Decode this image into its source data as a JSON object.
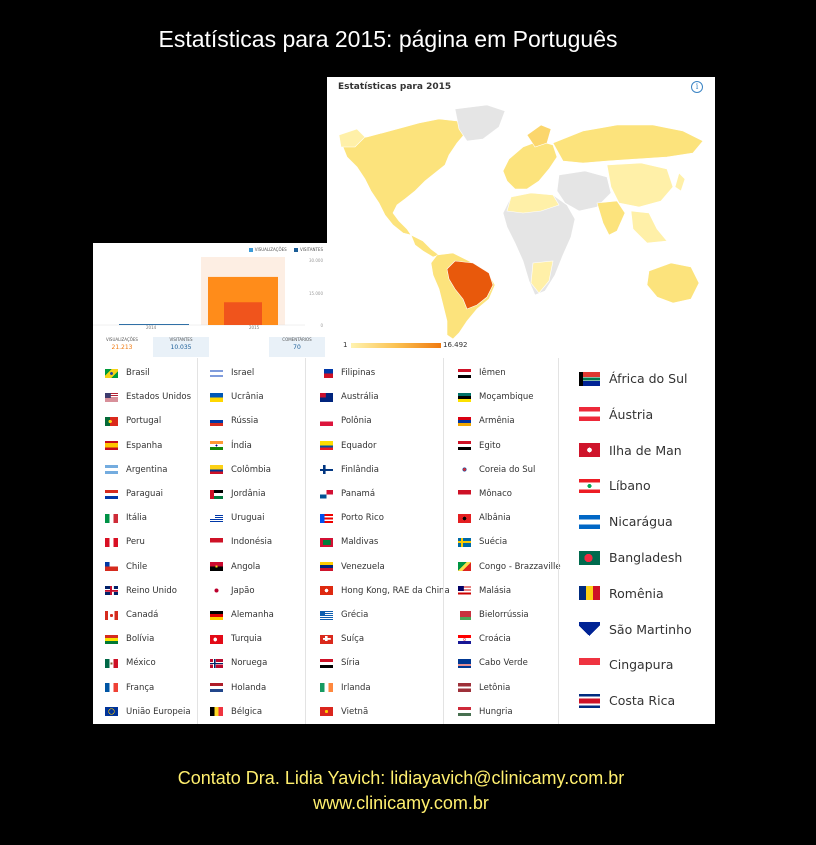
{
  "title": "Estatísticas para 2015: página em Português",
  "map": {
    "title": "Estatísticas para 2015",
    "legend_min": "1",
    "legend_max": "16.492",
    "colors": {
      "low": "#fff0a8",
      "mid": "#fbd66c",
      "high": "#f07a10",
      "top": "#e8590c",
      "none": "#e5e5e5"
    }
  },
  "chart": {
    "legend_visualizacoes": "VISUALIZAÇÕES",
    "legend_visitantes": "VISITANTES",
    "tick_top": "30.000",
    "tick_mid": "15.000",
    "tick_zero": "0",
    "x_2014": "2014",
    "x_2015": "2015",
    "chart_data": {
      "type": "bar",
      "categories": [
        "2014",
        "2015"
      ],
      "series": [
        {
          "name": "VISUALIZAÇÕES",
          "values": [
            300,
            21213
          ]
        },
        {
          "name": "VISITANTES",
          "values": [
            150,
            10035
          ]
        }
      ],
      "ylim": [
        0,
        30000
      ]
    },
    "stats": {
      "views_label": "VISUALIZAÇÕES",
      "views_value": "21.213",
      "visitors_label": "VISITANTES",
      "visitors_value": "10.035",
      "comments_label": "COMENTÁRIOS",
      "comments_value": "70"
    }
  },
  "countries": {
    "col1": [
      {
        "name": "Brasil",
        "flag": "brazil"
      },
      {
        "name": "Estados Unidos",
        "flag": "usa"
      },
      {
        "name": "Portugal",
        "flag": "portugal"
      },
      {
        "name": "Espanha",
        "flag": "spain"
      },
      {
        "name": "Argentina",
        "flag": "argentina"
      },
      {
        "name": "Paraguai",
        "flag": "paraguay"
      },
      {
        "name": "Itália",
        "flag": "italy"
      },
      {
        "name": "Peru",
        "flag": "peru"
      },
      {
        "name": "Chile",
        "flag": "chile"
      },
      {
        "name": "Reino Unido",
        "flag": "uk"
      },
      {
        "name": "Canadá",
        "flag": "canada"
      },
      {
        "name": "Bolívia",
        "flag": "bolivia"
      },
      {
        "name": "México",
        "flag": "mexico"
      },
      {
        "name": "França",
        "flag": "france"
      },
      {
        "name": "União Europeia",
        "flag": "eu"
      }
    ],
    "col2": [
      {
        "name": "Israel",
        "flag": "israel"
      },
      {
        "name": "Ucrânia",
        "flag": "ukraine"
      },
      {
        "name": "Rússia",
        "flag": "russia"
      },
      {
        "name": "Índia",
        "flag": "india"
      },
      {
        "name": "Colômbia",
        "flag": "colombia"
      },
      {
        "name": "Jordânia",
        "flag": "jordan"
      },
      {
        "name": "Uruguai",
        "flag": "uruguay"
      },
      {
        "name": "Indonésia",
        "flag": "indonesia"
      },
      {
        "name": "Angola",
        "flag": "angola"
      },
      {
        "name": "Japão",
        "flag": "japan"
      },
      {
        "name": "Alemanha",
        "flag": "germany"
      },
      {
        "name": "Turquia",
        "flag": "turkey"
      },
      {
        "name": "Noruega",
        "flag": "norway"
      },
      {
        "name": "Holanda",
        "flag": "netherlands"
      },
      {
        "name": "Bélgica",
        "flag": "belgium"
      }
    ],
    "col3": [
      {
        "name": "Filipinas",
        "flag": "philippines"
      },
      {
        "name": "Austrália",
        "flag": "australia"
      },
      {
        "name": "Polônia",
        "flag": "poland"
      },
      {
        "name": "Equador",
        "flag": "ecuador"
      },
      {
        "name": "Finlândia",
        "flag": "finland"
      },
      {
        "name": "Panamá",
        "flag": "panama"
      },
      {
        "name": "Porto Rico",
        "flag": "puertorico"
      },
      {
        "name": "Maldivas",
        "flag": "maldives"
      },
      {
        "name": "Venezuela",
        "flag": "venezuela"
      },
      {
        "name": "Hong Kong, RAE da China",
        "flag": "hongkong"
      },
      {
        "name": "Grécia",
        "flag": "greece"
      },
      {
        "name": "Suíça",
        "flag": "switzerland"
      },
      {
        "name": "Síria",
        "flag": "syria"
      },
      {
        "name": "Irlanda",
        "flag": "ireland"
      },
      {
        "name": "Vietnã",
        "flag": "vietnam"
      }
    ],
    "col4": [
      {
        "name": "Iêmen",
        "flag": "yemen"
      },
      {
        "name": "Moçambique",
        "flag": "mozambique"
      },
      {
        "name": "Armênia",
        "flag": "armenia"
      },
      {
        "name": "Egito",
        "flag": "egypt"
      },
      {
        "name": "Coreia do Sul",
        "flag": "korea"
      },
      {
        "name": "Mônaco",
        "flag": "monaco"
      },
      {
        "name": "Albânia",
        "flag": "albania"
      },
      {
        "name": "Suécia",
        "flag": "sweden"
      },
      {
        "name": "Congo - Brazzaville",
        "flag": "congo"
      },
      {
        "name": "Malásia",
        "flag": "malaysia"
      },
      {
        "name": "Bielorrússia",
        "flag": "belarus"
      },
      {
        "name": "Croácia",
        "flag": "croatia"
      },
      {
        "name": "Cabo Verde",
        "flag": "capeverde"
      },
      {
        "name": "Letônia",
        "flag": "latvia"
      },
      {
        "name": "Hungria",
        "flag": "hungary"
      }
    ],
    "col5": [
      {
        "name": "África do Sul",
        "flag": "southafrica"
      },
      {
        "name": "Áustria",
        "flag": "austria"
      },
      {
        "name": "Ilha de Man",
        "flag": "isleofman"
      },
      {
        "name": "Líbano",
        "flag": "lebanon"
      },
      {
        "name": "Nicarágua",
        "flag": "nicaragua"
      },
      {
        "name": "Bangladesh",
        "flag": "bangladesh"
      },
      {
        "name": "Romênia",
        "flag": "romania"
      },
      {
        "name": "São Martinho",
        "flag": "saintmartin"
      },
      {
        "name": "Cingapura",
        "flag": "singapore"
      },
      {
        "name": "Costa Rica",
        "flag": "costarica"
      }
    ]
  },
  "footer": {
    "contact": "Contato  Dra. Lidia Yavich:  lidiayavich@clinicamy.com.br",
    "website": "www.clinicamy.com.br"
  }
}
